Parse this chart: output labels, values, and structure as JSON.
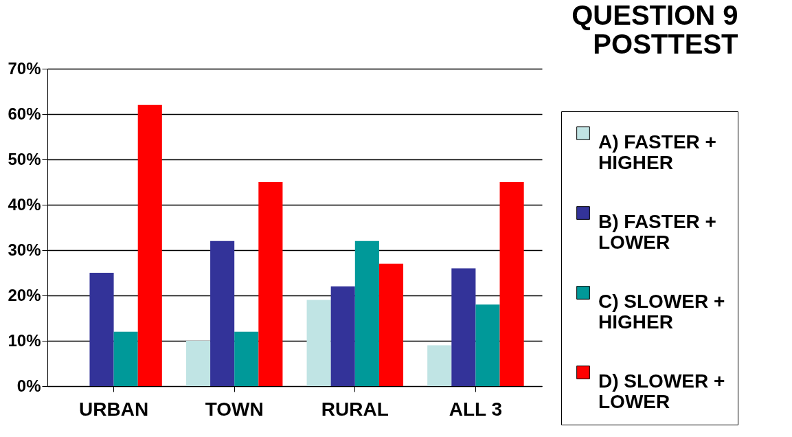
{
  "chart_data": {
    "type": "bar",
    "title": "QUESTION 9",
    "subtitle": "POSTTEST",
    "categories": [
      "URBAN",
      "TOWN",
      "RURAL",
      "ALL 3"
    ],
    "series": [
      {
        "name": "A) FASTER + HIGHER",
        "color": "#c0e4e4",
        "values": [
          0,
          10,
          19,
          9
        ]
      },
      {
        "name": "B) FASTER + LOWER",
        "color": "#333399",
        "values": [
          25,
          32,
          22,
          26
        ]
      },
      {
        "name": "C) SLOWER + HIGHER",
        "color": "#009999",
        "values": [
          12,
          12,
          32,
          18
        ]
      },
      {
        "name": "D) SLOWER + LOWER",
        "color": "#ff0000",
        "values": [
          62,
          45,
          27,
          45
        ]
      }
    ],
    "ylim": [
      0,
      70
    ],
    "yticks": [
      {
        "value": 0,
        "label": "0%"
      },
      {
        "value": 10,
        "label": "10%"
      },
      {
        "value": 20,
        "label": "20%"
      },
      {
        "value": 30,
        "label": "30%"
      },
      {
        "value": 40,
        "label": "40%"
      },
      {
        "value": 50,
        "label": "50%"
      },
      {
        "value": 60,
        "label": "60%"
      },
      {
        "value": 70,
        "label": "70%"
      }
    ],
    "grid": "y",
    "legend": "right"
  }
}
